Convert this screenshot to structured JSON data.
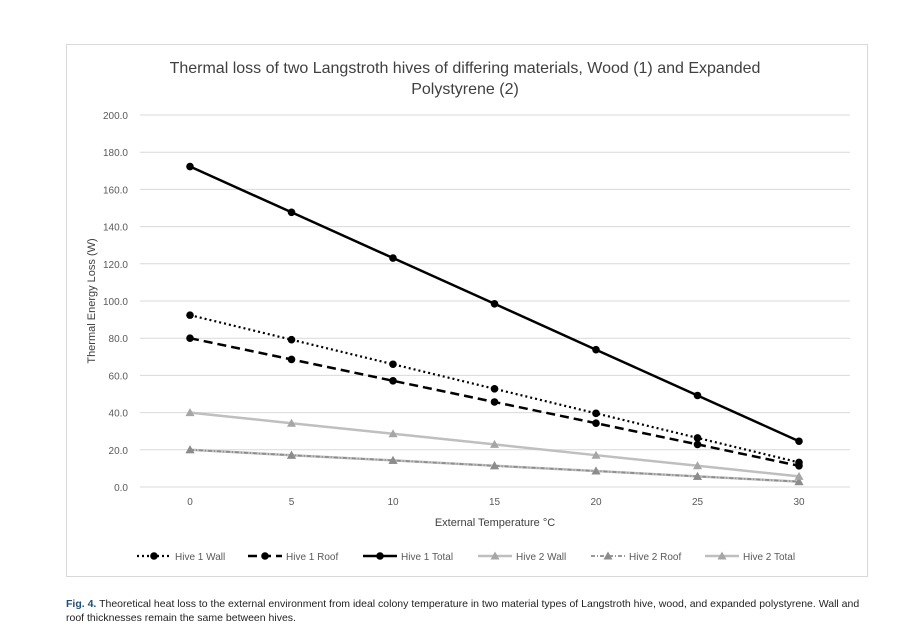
{
  "chart_data": {
    "type": "line",
    "title": "Thermal loss of two Langstroth hives of differing materials, Wood (1) and Expanded Polystyrene (2)",
    "title_lines": [
      "Thermal loss of two Langstroth hives of differing materials, Wood (1) and Expanded",
      "Polystyrene (2)"
    ],
    "xlabel": "External Temperature °C",
    "ylabel": "Thermal Energy Loss (W)",
    "x": [
      0,
      5,
      10,
      15,
      20,
      25,
      30
    ],
    "x_tick_labels": [
      "0",
      "5",
      "10",
      "15",
      "20",
      "25",
      "30"
    ],
    "ylim": [
      0,
      200
    ],
    "y_ticks": [
      "0.0",
      "20.0",
      "40.0",
      "60.0",
      "80.0",
      "100.0",
      "120.0",
      "140.0",
      "160.0",
      "180.0",
      "200.0"
    ],
    "grid": true,
    "legend_placement": "bottom",
    "series": [
      {
        "name": "Hive 1 Wall",
        "values": [
          92.4,
          79.2,
          66.0,
          52.8,
          39.6,
          26.4,
          13.2
        ],
        "color": "#000000",
        "dash": "dotted",
        "marker": "circle"
      },
      {
        "name": "Hive 1 Roof",
        "values": [
          80.0,
          68.6,
          57.1,
          45.7,
          34.3,
          22.9,
          11.4
        ],
        "color": "#000000",
        "dash": "dashed",
        "marker": "circle"
      },
      {
        "name": "Hive 1 Total",
        "values": [
          172.3,
          147.7,
          123.1,
          98.5,
          73.8,
          49.2,
          24.6
        ],
        "color": "#000000",
        "dash": "solid",
        "marker": "circle"
      },
      {
        "name": "Hive 2 Wall",
        "values": [
          20.0,
          17.1,
          14.3,
          11.4,
          8.6,
          5.7,
          2.9
        ],
        "color": "#bfbfbf",
        "dash": "solid",
        "marker": "triangle"
      },
      {
        "name": "Hive 2 Roof",
        "values": [
          20.0,
          17.1,
          14.3,
          11.4,
          8.6,
          5.7,
          2.9
        ],
        "color": "#8c8c8c",
        "dash": "dotdash",
        "marker": "triangle"
      },
      {
        "name": "Hive 2 Total",
        "values": [
          40.0,
          34.3,
          28.6,
          22.9,
          17.1,
          11.4,
          5.7
        ],
        "color": "#bfbfbf",
        "dash": "solid",
        "marker": "triangle"
      }
    ]
  },
  "caption": {
    "label": "Fig. 4.",
    "text": " Theoretical heat loss to the external environment from ideal colony temperature in two material types of Langstroth hive, wood, and expanded polystyrene. Wall and roof thicknesses remain the same between hives."
  }
}
